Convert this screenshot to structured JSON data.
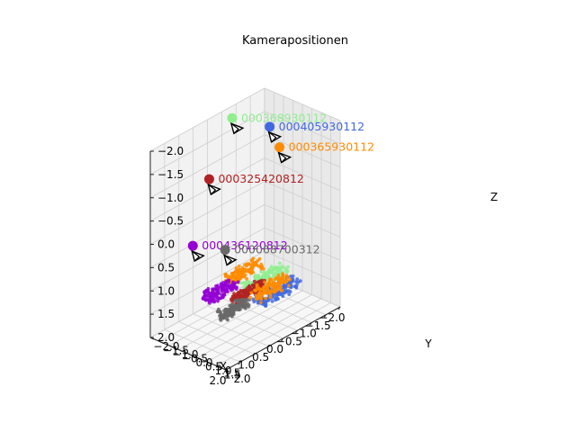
{
  "chart_data": {
    "type": "scatter",
    "title": "Kamerapositionen",
    "xlabel": "X",
    "ylabel": "Y",
    "zlabel": "Z",
    "xlim": [
      -2.0,
      2.0
    ],
    "ylim": [
      2.0,
      -2.0
    ],
    "zlim": [
      2.0,
      -2.0
    ],
    "xticks": [
      "−2.0",
      "−1.5",
      "−1.0",
      "−0.5",
      "0.0",
      "0.5",
      "1.0",
      "1.5",
      "2.0"
    ],
    "yticks": [
      "2.0",
      "1.5",
      "1.0",
      "0.5",
      "0.0",
      "−0.5",
      "−1.0",
      "−1.5",
      "−2.0"
    ],
    "zticks": [
      "2.0",
      "1.5",
      "1.0",
      "0.5",
      "0.0",
      "−0.5",
      "−1.0",
      "−1.5",
      "−2.0"
    ],
    "grid": true,
    "cameras": [
      {
        "label": "000405930112",
        "color": "#4169e1",
        "x": -1.45,
        "y": -0.9,
        "z": -1.55
      },
      {
        "label": "000365930112",
        "color": "#ff8c00",
        "x": -1.2,
        "y": 0.0,
        "z": -1.35
      },
      {
        "label": "000368930112",
        "color": "#90ee90",
        "x": -0.6,
        "y": -1.6,
        "z": -1.9
      },
      {
        "label": "000325420812",
        "color": "#b22222",
        "x": 0.6,
        "y": -1.0,
        "z": -1.1
      },
      {
        "label": "000436120812",
        "color": "#9400d3",
        "x": 1.9,
        "y": 0.1,
        "z": -0.3
      },
      {
        "label": "000068700312",
        "color": "#696969",
        "x": 1.3,
        "y": 0.9,
        "z": -0.15
      }
    ],
    "clouds": [
      {
        "color": "#4169e1",
        "x": [
          -1.0,
          0.35
        ],
        "y": [
          0.9,
          1.45
        ],
        "z": [
          1.15,
          1.35
        ]
      },
      {
        "color": "#90ee90",
        "x": [
          -1.05,
          0.3
        ],
        "y": [
          0.2,
          0.7
        ],
        "z": [
          1.0,
          1.2
        ]
      },
      {
        "color": "#ff8c00",
        "x": [
          -0.5,
          0.6
        ],
        "y": [
          -0.25,
          0.25
        ],
        "z": [
          0.8,
          1.0
        ]
      },
      {
        "color": "#b22222",
        "x": [
          -0.2,
          0.9
        ],
        "y": [
          0.55,
          0.9
        ],
        "z": [
          1.0,
          1.2
        ]
      },
      {
        "color": "#9400d3",
        "x": [
          0.5,
          1.55
        ],
        "y": [
          -0.05,
          0.45
        ],
        "z": [
          0.85,
          1.05
        ]
      },
      {
        "color": "#696969",
        "x": [
          0.55,
          1.5
        ],
        "y": [
          0.75,
          1.15
        ],
        "z": [
          1.1,
          1.3
        ]
      },
      {
        "color": "#ff8c00",
        "x": [
          -0.8,
          0.3
        ],
        "y": [
          0.7,
          1.2
        ],
        "z": [
          1.05,
          1.3
        ]
      }
    ]
  }
}
